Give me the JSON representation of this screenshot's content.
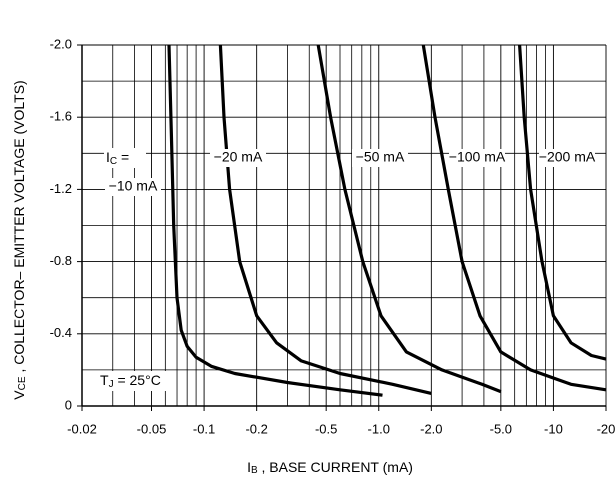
{
  "chart_data": {
    "type": "line",
    "xscale": "log",
    "xlabel": {
      "main": "I",
      "sub": "B",
      "rest": " , BASE CURRENT (mA)"
    },
    "ylabel": {
      "main": "V",
      "sub": "CE",
      "rest": " , COLLECTOR– EMITTER VOLTAGE (VOLTS)"
    },
    "xlim": [
      -0.02,
      -20
    ],
    "ylim": [
      0,
      -2.0
    ],
    "xticks": [
      -0.02,
      -0.05,
      -0.1,
      -0.2,
      -0.5,
      {
        "value": -1,
        "label": "-1.0"
      },
      {
        "value": -2,
        "label": "-2.0"
      },
      {
        "value": -5,
        "label": "-5.0"
      },
      -10,
      -20
    ],
    "xminor_ticks": [
      -0.03,
      -0.04,
      -0.06,
      -0.07,
      -0.08,
      -0.09,
      -0.3,
      -0.4,
      -0.6,
      -0.7,
      -0.8,
      -0.9,
      -3,
      -4,
      -6,
      -7,
      -8,
      -9
    ],
    "yticks": [
      0,
      -0.4,
      -0.8,
      -1.2,
      -1.6,
      {
        "value": -2,
        "label": "-2.0"
      }
    ],
    "yminor_ticks": [
      -0.2,
      -0.6,
      -1.0,
      -1.4,
      -1.8
    ],
    "grid": true,
    "color": "#000000",
    "series": [
      {
        "name": "−10 mA",
        "x": [
          -0.063,
          -0.065,
          -0.067,
          -0.07,
          -0.074,
          -0.08,
          -0.09,
          -0.11,
          -0.15,
          -0.3,
          -0.6,
          -1.05
        ],
        "values": [
          -2.0,
          -1.5,
          -1.0,
          -0.6,
          -0.42,
          -0.33,
          -0.27,
          -0.22,
          -0.18,
          -0.13,
          -0.09,
          -0.06
        ]
      },
      {
        "name": "−20 mA",
        "x": [
          -0.124,
          -0.13,
          -0.14,
          -0.16,
          -0.2,
          -0.26,
          -0.36,
          -0.6,
          -1.2,
          -2.0
        ],
        "values": [
          -2.0,
          -1.6,
          -1.2,
          -0.8,
          -0.5,
          -0.35,
          -0.25,
          -0.18,
          -0.12,
          -0.07
        ]
      },
      {
        "name": "−50 mA",
        "x": [
          -0.45,
          -0.53,
          -0.64,
          -0.81,
          -1.03,
          -1.44,
          -2.3,
          -3.9,
          -5.0
        ],
        "values": [
          -2.0,
          -1.6,
          -1.2,
          -0.8,
          -0.5,
          -0.3,
          -0.2,
          -0.12,
          -0.08
        ]
      },
      {
        "name": "−100 mA",
        "x": [
          -1.8,
          -2.1,
          -2.5,
          -3.0,
          -3.8,
          -5.0,
          -7.4,
          -12.6,
          -20
        ],
        "values": [
          -2.0,
          -1.6,
          -1.2,
          -0.8,
          -0.5,
          -0.3,
          -0.2,
          -0.12,
          -0.09
        ]
      },
      {
        "name": "−200 mA",
        "x": [
          -6.4,
          -6.8,
          -7.4,
          -8.6,
          -10,
          -12.6,
          -16.5,
          -20
        ],
        "values": [
          -2.0,
          -1.6,
          -1.2,
          -0.8,
          -0.5,
          -0.35,
          -0.28,
          -0.26
        ]
      }
    ],
    "annotations": [
      {
        "main": "I",
        "sub": "C",
        "rest": " ="
      },
      {
        "main": "T",
        "sub": "J",
        "rest": " = 25°C"
      }
    ]
  }
}
